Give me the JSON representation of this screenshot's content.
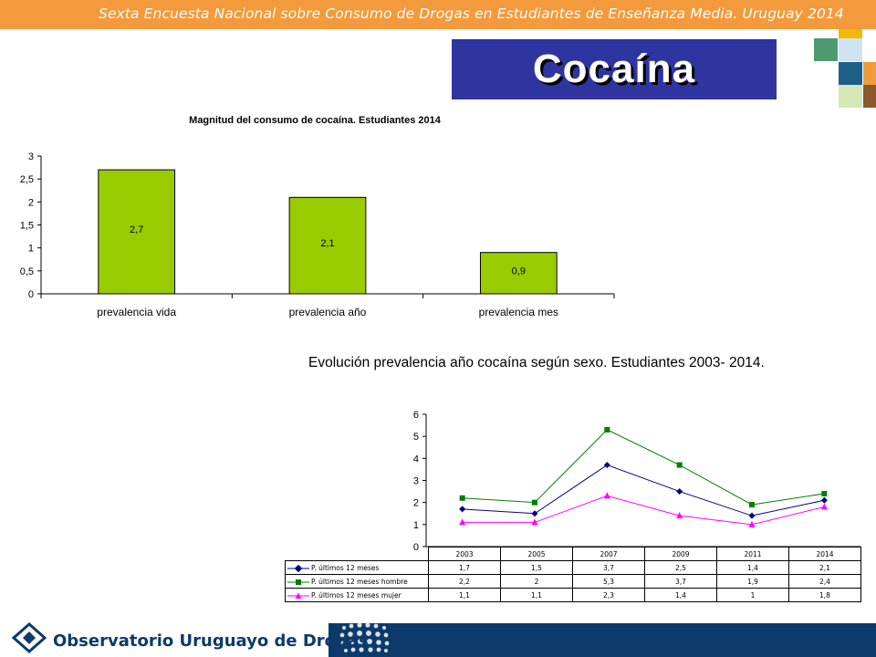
{
  "header": {
    "title": "Sexta Encuesta Nacional sobre Consumo de Drogas en Estudiantes de Enseñanza Media. Uruguay 2014"
  },
  "section": {
    "title": "Cocaína"
  },
  "colors": {
    "banner": "#f39a3c",
    "badge": "#2e35a0",
    "bar_fill": "#99cc00",
    "footer": "#0c3a6b",
    "series": [
      "#000080",
      "#008000",
      "#ff00ff"
    ]
  },
  "chart_data": [
    {
      "type": "bar",
      "title": "Magnitud del consumo de cocaína. Estudiantes 2014",
      "categories": [
        "prevalencia vida",
        "prevalencia año",
        "prevalencia mes"
      ],
      "values": [
        2.7,
        2.1,
        0.9
      ],
      "data_labels": [
        "2,7",
        "2,1",
        "0,9"
      ],
      "ylim": [
        0,
        3
      ],
      "yticks": [
        "0",
        "0,5",
        "1",
        "1,5",
        "2",
        "2,5",
        "3"
      ],
      "grid": false
    },
    {
      "type": "line",
      "title": "Evolución prevalencia año cocaína según sexo. Estudiantes 2003- 2014.",
      "x": [
        "2003",
        "2005",
        "2007",
        "2009",
        "2011",
        "2014"
      ],
      "ylim": [
        0,
        6
      ],
      "yticks": [
        "0",
        "1",
        "2",
        "3",
        "4",
        "5",
        "6"
      ],
      "grid": false,
      "legend": "data-table",
      "series": [
        {
          "name": "P. últimos 12 meses",
          "marker": "diamond",
          "values": [
            1.7,
            1.5,
            3.7,
            2.5,
            1.4,
            2.1
          ],
          "labels": [
            "1,7",
            "1,5",
            "3,7",
            "2,5",
            "1,4",
            "2,1"
          ]
        },
        {
          "name": "P. últimos 12 meses hombre",
          "marker": "square",
          "values": [
            2.2,
            2,
            5.3,
            3.7,
            1.9,
            2.4
          ],
          "labels": [
            "2,2",
            "2",
            "5,3",
            "3,7",
            "1,9",
            "2,4"
          ]
        },
        {
          "name": "P. últimos 12 meses mujer",
          "marker": "triangle",
          "values": [
            1.1,
            1.1,
            2.3,
            1.4,
            1,
            1.8
          ],
          "labels": [
            "1,1",
            "1,1",
            "2,3",
            "1,4",
            "1",
            "1,8"
          ]
        }
      ]
    }
  ],
  "footer": {
    "brand": "Observatorio Uruguayo de Drogas"
  }
}
